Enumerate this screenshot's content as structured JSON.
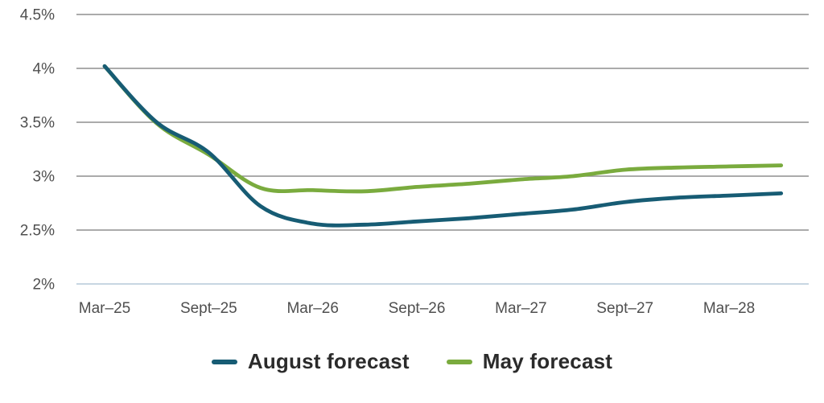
{
  "chart_data": {
    "type": "line",
    "title": "",
    "xlabel": "",
    "ylabel": "",
    "ylim": [
      2,
      4.5
    ],
    "grid": "horizontal",
    "legend_position": "bottom",
    "x": [
      "Mar–25",
      "Jun–25",
      "Sept–25",
      "Dec–25",
      "Mar–26",
      "Jun–26",
      "Sept–26",
      "Dec–26",
      "Mar–27",
      "Jun–27",
      "Sept–27",
      "Dec–27",
      "Mar–28",
      "Jun–28"
    ],
    "x_ticks": [
      {
        "index": 0,
        "label": "Mar–25"
      },
      {
        "index": 2,
        "label": "Sept–25"
      },
      {
        "index": 4,
        "label": "Mar–26"
      },
      {
        "index": 6,
        "label": "Sept–26"
      },
      {
        "index": 8,
        "label": "Mar–27"
      },
      {
        "index": 10,
        "label": "Sept–27"
      },
      {
        "index": 12,
        "label": "Mar–28"
      }
    ],
    "y_ticks": [
      {
        "value": 4.5,
        "label": "4.5%"
      },
      {
        "value": 4,
        "label": "4%"
      },
      {
        "value": 3.5,
        "label": "3.5%"
      },
      {
        "value": 3,
        "label": "3%"
      },
      {
        "value": 2.5,
        "label": "2.5%"
      },
      {
        "value": 2,
        "label": "2%"
      }
    ],
    "series": [
      {
        "name": "August forecast",
        "color": "#175C74",
        "values": [
          4.02,
          3.5,
          3.22,
          2.72,
          2.56,
          2.55,
          2.58,
          2.61,
          2.65,
          2.69,
          2.76,
          2.8,
          2.82,
          2.84
        ]
      },
      {
        "name": "May forecast",
        "color": "#7AAB3E",
        "values": [
          4.02,
          3.49,
          3.2,
          2.89,
          2.87,
          2.86,
          2.9,
          2.93,
          2.97,
          3.0,
          3.06,
          3.08,
          3.09,
          3.1
        ]
      }
    ],
    "colors": {
      "gridline": "#8F8F8F",
      "baseline": "#C7D6E2",
      "axis_label": "#4F4F4F",
      "legend_text": "#2B2B2B",
      "background": "#FFFFFF"
    }
  }
}
